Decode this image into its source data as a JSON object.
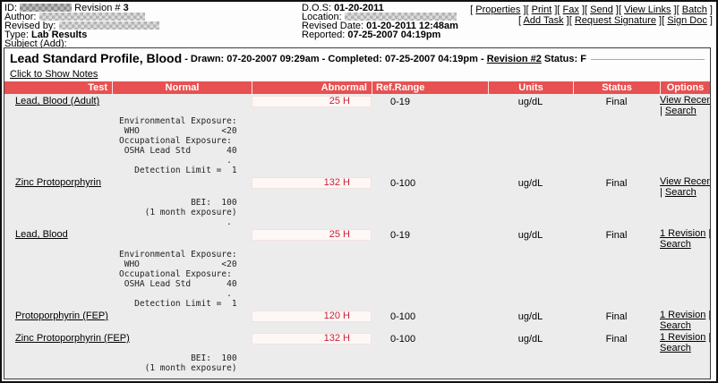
{
  "colors": {
    "header_bar": "#e85151",
    "abnormal_text": "#cc2039",
    "table_body_bg": "#ececec"
  },
  "header": {
    "id_label": "ID:",
    "revision_label": " Revision # ",
    "revision_value": "3",
    "author_label": "Author:",
    "revised_by_label": "Revised by:",
    "type_label": "Type: ",
    "type_value": "Lab Results",
    "subject_label": "Subject (",
    "subject_add_link": "Add",
    "subject_close": "):",
    "dos_label": "D.O.S: ",
    "dos_value": "01-20-2011",
    "location_label": "Location:",
    "revised_date_label": "Revised Date: ",
    "revised_date_value": "01-20-2011 12:48am",
    "reported_label": "Reported: ",
    "reported_value": "07-25-2007 04:19pm",
    "bracket_open": "[ ",
    "bracket_close": " ]",
    "actions_row1": [
      "Properties",
      "Print",
      "Fax",
      "Send",
      "View Links",
      "Batch"
    ],
    "actions_row2": [
      "Add Task",
      "Request Signature",
      "Sign Doc"
    ]
  },
  "document": {
    "title": "Lead Standard Profile, Blood",
    "title_suffix": " - Drawn: 07-20-2007 09:29am - Completed: 07-25-2007 04:19pm - ",
    "revision_link": "Revision #2",
    "status_suffix": " Status: F",
    "notes_toggle": "Click to Show Notes",
    "table": {
      "headers": [
        "Test",
        "Normal",
        "Abnormal",
        "Ref.Range",
        "Units",
        "Status",
        "Options"
      ],
      "rows": [
        {
          "test": "Lead, Blood (Adult)",
          "abnormal": "25 H",
          "ref_range": "0-19",
          "units": "ug/dL",
          "status": "Final",
          "opt_link1": "View Recent",
          "opt1_suffix": "",
          "opt2_prefix": "| ",
          "opt_link2": "Search",
          "notes": "Environmental Exposure:\n WHO                <20\nOccupational Exposure:\n OSHA Lead Std       40\n                     .\n   Detection Limit =  1"
        },
        {
          "test": "Zinc Protoporphyrin",
          "abnormal": "132 H",
          "ref_range": "0-100",
          "units": "ug/dL",
          "status": "Final",
          "opt_link1": "View Recent",
          "opt1_suffix": "",
          "opt2_prefix": "| ",
          "opt_link2": "Search",
          "notes": "              BEI:  100\n     (1 month exposure)\n                     ."
        },
        {
          "test": "Lead, Blood",
          "abnormal": "25 H",
          "ref_range": "0-19",
          "units": "ug/dL",
          "status": "Final",
          "opt_link1": "1 Revision",
          "opt1_suffix": " |",
          "opt2_prefix": "",
          "opt_link2": "Search",
          "notes": "Environmental Exposure:\n WHO                <20\nOccupational Exposure:\n OSHA Lead Std       40\n                     .\n   Detection Limit =  1"
        },
        {
          "test": "Protoporphyrin (FEP)",
          "abnormal": "120 H",
          "ref_range": "0-100",
          "units": "ug/dL",
          "status": "Final",
          "opt_link1": "1 Revision",
          "opt1_suffix": " |",
          "opt2_prefix": "",
          "opt_link2": "Search",
          "notes": ""
        },
        {
          "test": "Zinc Protoporphyrin (FEP)",
          "abnormal": "132 H",
          "ref_range": "0-100",
          "units": "ug/dL",
          "status": "Final",
          "opt_link1": "1 Revision",
          "opt1_suffix": " |",
          "opt2_prefix": "",
          "opt_link2": "Search",
          "notes": "              BEI:  100\n     (1 month exposure)\n                     ."
        }
      ]
    }
  }
}
